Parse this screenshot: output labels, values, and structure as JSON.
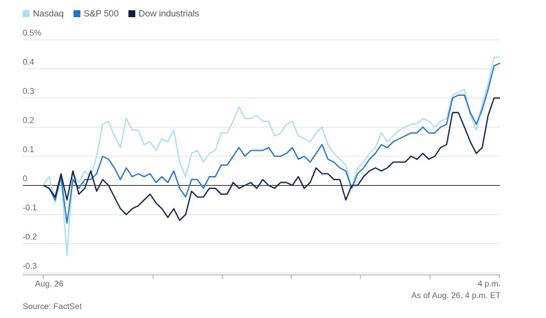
{
  "legend": [
    {
      "name": "Nasdaq",
      "color": "#a6e0f5"
    },
    {
      "name": "S&P 500",
      "color": "#1a73d6"
    },
    {
      "name": "Dow industrials",
      "color": "#0d1f45"
    }
  ],
  "source": "Source: FactSet",
  "as_of": "As of Aug. 26, 4 p.m. ET",
  "chart_data": {
    "type": "line",
    "title": "",
    "xlabel": "",
    "ylabel": "",
    "ylim": [
      -0.3,
      0.5
    ],
    "y_ticks": [
      {
        "value": 0.5,
        "label": "0.5%"
      },
      {
        "value": 0.4,
        "label": "0.4"
      },
      {
        "value": 0.3,
        "label": "0.3"
      },
      {
        "value": 0.2,
        "label": "0.2"
      },
      {
        "value": 0.1,
        "label": "0.1"
      },
      {
        "value": 0,
        "label": "0"
      },
      {
        "value": -0.1,
        "label": "-0.1"
      },
      {
        "value": -0.2,
        "label": "-0.2"
      },
      {
        "value": -0.3,
        "label": "-0.3"
      }
    ],
    "x_tick_labels": {
      "start": "Aug. 26",
      "end": "4 p.m."
    },
    "grid": true,
    "legend_position": "top-left",
    "series": [
      {
        "name": "Nasdaq",
        "color": "#a6e0f5",
        "values": [
          0,
          0.03,
          -0.06,
          0.03,
          -0.24,
          0.04,
          0.01,
          0.05,
          0.03,
          0.1,
          0.21,
          0.22,
          0.17,
          0.13,
          0.23,
          0.19,
          0.19,
          0.14,
          0.15,
          0.12,
          0.16,
          0.15,
          0.19,
          0.08,
          0.03,
          0.11,
          0.12,
          0.08,
          0.11,
          0.12,
          0.18,
          0.18,
          0.22,
          0.27,
          0.23,
          0.23,
          0.24,
          0.22,
          0.22,
          0.17,
          0.18,
          0.21,
          0.22,
          0.17,
          0.16,
          0.15,
          0.18,
          0.2,
          0.14,
          0.11,
          0.09,
          0.07,
          -0.01,
          0.06,
          0.08,
          0.11,
          0.13,
          0.18,
          0.15,
          0.17,
          0.19,
          0.2,
          0.21,
          0.21,
          0.23,
          0.22,
          0.2,
          0.22,
          0.23,
          0.31,
          0.32,
          0.33,
          0.24,
          0.19,
          0.28,
          0.35,
          0.44,
          0.44
        ]
      },
      {
        "name": "S&P 500",
        "color": "#1a73d6",
        "values": [
          0,
          -0.01,
          -0.05,
          0.03,
          -0.13,
          0.02,
          -0.01,
          0.02,
          0.02,
          0.04,
          0.1,
          0.09,
          0.06,
          0.02,
          0.06,
          0.03,
          0.04,
          0.03,
          0.04,
          0.01,
          0.03,
          0.01,
          0.05,
          -0.01,
          -0.04,
          0.02,
          0.02,
          -0.01,
          0.03,
          0.03,
          0.07,
          0.07,
          0.1,
          0.13,
          0.1,
          0.12,
          0.12,
          0.12,
          0.13,
          0.1,
          0.1,
          0.11,
          0.13,
          0.09,
          0.1,
          0.08,
          0.11,
          0.14,
          0.09,
          0.08,
          0.06,
          0.05,
          -0.01,
          0.04,
          0.06,
          0.09,
          0.11,
          0.14,
          0.13,
          0.15,
          0.16,
          0.17,
          0.18,
          0.18,
          0.2,
          0.18,
          0.18,
          0.2,
          0.21,
          0.3,
          0.31,
          0.31,
          0.25,
          0.21,
          0.26,
          0.33,
          0.41,
          0.42
        ]
      },
      {
        "name": "Dow industrials",
        "color": "#0d1f45",
        "values": [
          0,
          -0.01,
          -0.04,
          0.04,
          -0.05,
          0.05,
          -0.03,
          -0.01,
          0.05,
          -0.02,
          0.02,
          0.0,
          -0.04,
          -0.08,
          -0.1,
          -0.08,
          -0.07,
          -0.05,
          -0.03,
          -0.06,
          -0.08,
          -0.11,
          -0.08,
          -0.12,
          -0.1,
          -0.02,
          -0.04,
          -0.04,
          -0.01,
          -0.01,
          -0.03,
          -0.03,
          0.01,
          -0.01,
          0.0,
          0.01,
          -0.01,
          0.02,
          0.0,
          -0.01,
          0.01,
          0.01,
          0.0,
          0.03,
          -0.01,
          0.01,
          0.06,
          0.04,
          0.04,
          0.02,
          0.02,
          -0.05,
          0.0,
          0.0,
          0.03,
          0.05,
          0.06,
          0.05,
          0.06,
          0.08,
          0.08,
          0.08,
          0.1,
          0.09,
          0.11,
          0.09,
          0.1,
          0.13,
          0.14,
          0.25,
          0.25,
          0.2,
          0.15,
          0.11,
          0.13,
          0.24,
          0.3,
          0.3
        ]
      }
    ]
  }
}
